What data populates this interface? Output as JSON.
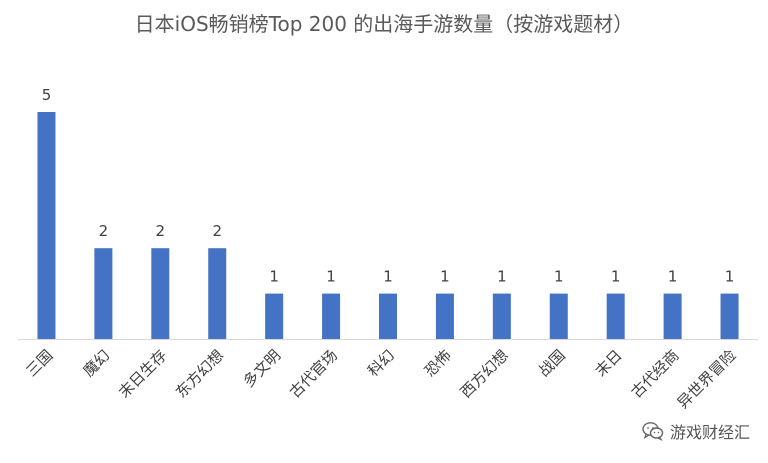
{
  "chart_data": {
    "type": "bar",
    "title": "日本iOS畅销榜Top 200 的出海手游数量（按游戏题材）",
    "categories": [
      "三国",
      "魔幻",
      "末日生存",
      "东方幻想",
      "多文明",
      "古代官场",
      "科幻",
      "恐怖",
      "西方幻想",
      "战国",
      "末日",
      "古代经商",
      "异世界冒险"
    ],
    "values": [
      5,
      2,
      2,
      2,
      1,
      1,
      1,
      1,
      1,
      1,
      1,
      1,
      1
    ],
    "xlabel": "",
    "ylabel": "",
    "ylim": [
      0,
      5
    ],
    "grid": false,
    "legend": "none",
    "bar_color": "#4472C4",
    "data_labels": true
  },
  "watermark": {
    "icon": "wechat-icon",
    "text": "游戏财经汇"
  }
}
